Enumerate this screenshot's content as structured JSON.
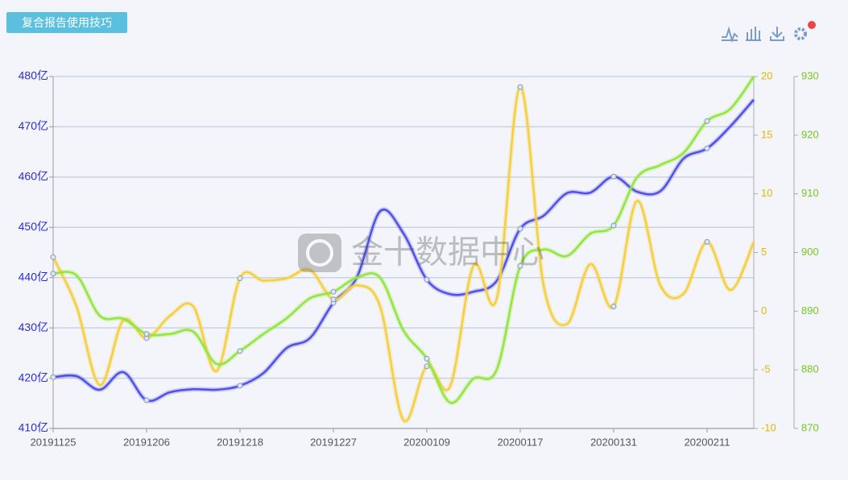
{
  "button": "复合报告使用技巧",
  "watermark": "金十数据中心",
  "chart_data": {
    "type": "line",
    "categories": [
      "20191125",
      null,
      null,
      null,
      "20191206",
      null,
      null,
      null,
      "20191218",
      null,
      null,
      null,
      "20191227",
      null,
      null,
      null,
      "20200109",
      null,
      null,
      null,
      "20200117",
      null,
      null,
      null,
      "20200131",
      null,
      null,
      null,
      "20200211",
      null,
      null
    ],
    "ylim": [
      410,
      480
    ],
    "yticks": [
      {
        "value": 410,
        "label": "410亿"
      },
      {
        "value": 420,
        "label": "420亿"
      },
      {
        "value": 430,
        "label": "430亿"
      },
      {
        "value": 440,
        "label": "440亿"
      },
      {
        "value": 450,
        "label": "450亿"
      },
      {
        "value": 460,
        "label": "460亿"
      },
      {
        "value": 470,
        "label": "470亿"
      },
      {
        "value": 480,
        "label": "480亿"
      }
    ],
    "y2lim": [
      -10,
      20
    ],
    "y2ticks": [
      -10,
      -5,
      0,
      5,
      10,
      15,
      20
    ],
    "y3lim": [
      870,
      930
    ],
    "y3ticks": [
      870,
      880,
      890,
      900,
      910,
      920,
      930
    ],
    "grid": true,
    "series": [
      {
        "color": "#5050e6",
        "axis": "y",
        "values": [
          420.2,
          420.4,
          417.7,
          421.2,
          415.6,
          417.2,
          417.8,
          417.7,
          418.5,
          421,
          426,
          428,
          435,
          440,
          453.2,
          448.8,
          439.6,
          436.7,
          437.2,
          439.4,
          449.7,
          452.3,
          456.8,
          456.9,
          460.1,
          457.1,
          457.2,
          463.7,
          465.7,
          470.1,
          475.4
        ]
      },
      {
        "color": "#f5cf3c",
        "axis": "y2",
        "values": [
          4.6,
          0.4,
          -6.3,
          -0.8,
          -2.3,
          -0.4,
          0.4,
          -5.1,
          2.8,
          2.6,
          2.8,
          3.5,
          1.0,
          2.2,
          0.4,
          -9.3,
          -4.7,
          -6.4,
          3.9,
          1.1,
          19.1,
          2.2,
          -1.1,
          4.0,
          0.4,
          9.4,
          2.2,
          1.5,
          5.9,
          1.8,
          5.9
        ]
      },
      {
        "color": "#92e63c",
        "axis": "y3",
        "values": [
          896.4,
          896.1,
          889.2,
          888.7,
          886.1,
          886.1,
          886.5,
          881,
          883.2,
          886.1,
          888.8,
          892.2,
          893.3,
          895.7,
          895.7,
          886.7,
          881.9,
          874.4,
          878.5,
          880.1,
          897.7,
          900.5,
          899.4,
          903.2,
          904.6,
          912.8,
          914.9,
          917,
          922.4,
          924.5,
          930
        ]
      }
    ]
  }
}
